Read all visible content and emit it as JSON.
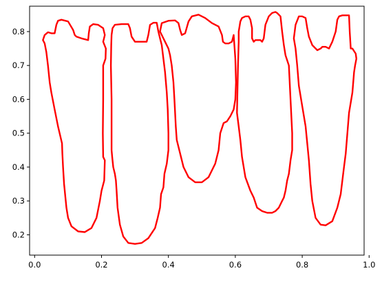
{
  "chart_data": {
    "type": "line",
    "title": "",
    "xlabel": "",
    "ylabel": "",
    "xlim": [
      -0.015,
      0.985
    ],
    "ylim": [
      0.14,
      0.875
    ],
    "grid": false,
    "legend": "none",
    "x_ticks": [
      0.0,
      0.2,
      0.4,
      0.6,
      0.8,
      1.0
    ],
    "x_tick_labels": [
      "0.0",
      "0.2",
      "0.4",
      "0.6",
      "0.8",
      "1.0"
    ],
    "y_ticks": [
      0.2,
      0.3,
      0.4,
      0.5,
      0.6,
      0.7,
      0.8
    ],
    "y_tick_labels": [
      "0.2",
      "0.3",
      "0.4",
      "0.5",
      "0.6",
      "0.7",
      "0.8"
    ],
    "series": [
      {
        "color": "#ff0000",
        "x": [
          0.025,
          0.03,
          0.04,
          0.05,
          0.06,
          0.065,
          0.07,
          0.08,
          0.1,
          0.115,
          0.12,
          0.125,
          0.14,
          0.16,
          0.162,
          0.165,
          0.175,
          0.19,
          0.205,
          0.21,
          0.205,
          0.213,
          0.212,
          0.205,
          0.205,
          0.204,
          0.205,
          0.21,
          0.208,
          0.2,
          0.195,
          0.185,
          0.17,
          0.15,
          0.13,
          0.11,
          0.1,
          0.095,
          0.088,
          0.085,
          0.083,
          0.082,
          0.07,
          0.06,
          0.05,
          0.045,
          0.04,
          0.035,
          0.03,
          0.025
        ],
        "y": [
          0.775,
          0.79,
          0.798,
          0.795,
          0.795,
          0.82,
          0.832,
          0.835,
          0.83,
          0.805,
          0.79,
          0.785,
          0.78,
          0.775,
          0.795,
          0.815,
          0.822,
          0.82,
          0.81,
          0.79,
          0.77,
          0.75,
          0.72,
          0.7,
          0.6,
          0.5,
          0.43,
          0.42,
          0.36,
          0.33,
          0.3,
          0.25,
          0.22,
          0.208,
          0.21,
          0.225,
          0.25,
          0.28,
          0.35,
          0.4,
          0.44,
          0.47,
          0.52,
          0.57,
          0.62,
          0.65,
          0.7,
          0.74,
          0.765,
          0.775
        ]
      },
      {
        "color": "#ff0000",
        "x": [
          0.23,
          0.233,
          0.24,
          0.26,
          0.28,
          0.285,
          0.29,
          0.3,
          0.32,
          0.335,
          0.34,
          0.345,
          0.355,
          0.365,
          0.37,
          0.375,
          0.38,
          0.385,
          0.39,
          0.395,
          0.398,
          0.4,
          0.4,
          0.395,
          0.388,
          0.385,
          0.378,
          0.375,
          0.368,
          0.36,
          0.34,
          0.32,
          0.3,
          0.28,
          0.265,
          0.255,
          0.248,
          0.245,
          0.243,
          0.24,
          0.235,
          0.232,
          0.23,
          0.23,
          0.228,
          0.229,
          0.23
        ],
        "y": [
          0.79,
          0.81,
          0.82,
          0.822,
          0.822,
          0.81,
          0.785,
          0.77,
          0.77,
          0.77,
          0.79,
          0.82,
          0.826,
          0.826,
          0.8,
          0.78,
          0.76,
          0.72,
          0.68,
          0.62,
          0.57,
          0.5,
          0.45,
          0.41,
          0.38,
          0.34,
          0.32,
          0.28,
          0.25,
          0.22,
          0.19,
          0.176,
          0.173,
          0.176,
          0.195,
          0.23,
          0.28,
          0.33,
          0.36,
          0.38,
          0.4,
          0.43,
          0.45,
          0.6,
          0.7,
          0.76,
          0.79
        ]
      },
      {
        "color": "#ff0000",
        "x": [
          0.375,
          0.38,
          0.4,
          0.42,
          0.43,
          0.435,
          0.44,
          0.45,
          0.46,
          0.47,
          0.49,
          0.51,
          0.53,
          0.55,
          0.56,
          0.563,
          0.57,
          0.58,
          0.59,
          0.595,
          0.6,
          0.602,
          0.6,
          0.595,
          0.585,
          0.575,
          0.565,
          0.555,
          0.55,
          0.54,
          0.52,
          0.5,
          0.48,
          0.46,
          0.445,
          0.435,
          0.425,
          0.422,
          0.42,
          0.418,
          0.415,
          0.41,
          0.405,
          0.4,
          0.39,
          0.38,
          0.375
        ],
        "y": [
          0.8,
          0.825,
          0.832,
          0.833,
          0.825,
          0.805,
          0.79,
          0.795,
          0.83,
          0.845,
          0.85,
          0.84,
          0.825,
          0.815,
          0.79,
          0.77,
          0.765,
          0.765,
          0.77,
          0.79,
          0.72,
          0.65,
          0.6,
          0.57,
          0.55,
          0.535,
          0.53,
          0.5,
          0.45,
          0.41,
          0.37,
          0.355,
          0.355,
          0.37,
          0.4,
          0.44,
          0.48,
          0.52,
          0.56,
          0.6,
          0.65,
          0.7,
          0.73,
          0.75,
          0.77,
          0.79,
          0.8
        ]
      },
      {
        "color": "#ff0000",
        "x": [
          0.61,
          0.61,
          0.615,
          0.62,
          0.63,
          0.64,
          0.645,
          0.65,
          0.65,
          0.655,
          0.66,
          0.675,
          0.68,
          0.685,
          0.69,
          0.7,
          0.71,
          0.72,
          0.725,
          0.735,
          0.74,
          0.745,
          0.75,
          0.76,
          0.765,
          0.77,
          0.77,
          0.765,
          0.76,
          0.755,
          0.75,
          0.745,
          0.74,
          0.73,
          0.72,
          0.71,
          0.695,
          0.68,
          0.665,
          0.655,
          0.645,
          0.63,
          0.62,
          0.615,
          0.61,
          0.605,
          0.608,
          0.61
        ],
        "y": [
          0.77,
          0.8,
          0.83,
          0.84,
          0.845,
          0.845,
          0.835,
          0.81,
          0.78,
          0.77,
          0.775,
          0.775,
          0.77,
          0.78,
          0.82,
          0.845,
          0.855,
          0.858,
          0.855,
          0.845,
          0.8,
          0.76,
          0.73,
          0.7,
          0.6,
          0.5,
          0.45,
          0.42,
          0.38,
          0.36,
          0.33,
          0.31,
          0.3,
          0.28,
          0.27,
          0.265,
          0.265,
          0.27,
          0.28,
          0.31,
          0.33,
          0.37,
          0.43,
          0.48,
          0.52,
          0.56,
          0.7,
          0.77
        ]
      },
      {
        "color": "#ff0000",
        "x": [
          0.775,
          0.78,
          0.79,
          0.8,
          0.81,
          0.815,
          0.82,
          0.83,
          0.845,
          0.855,
          0.86,
          0.87,
          0.88,
          0.89,
          0.9,
          0.905,
          0.91,
          0.92,
          0.94,
          0.942,
          0.945,
          0.95,
          0.96,
          0.962,
          0.958,
          0.955,
          0.95,
          0.94,
          0.935,
          0.93,
          0.925,
          0.92,
          0.915,
          0.905,
          0.89,
          0.87,
          0.855,
          0.84,
          0.83,
          0.825,
          0.82,
          0.815,
          0.81,
          0.8,
          0.79,
          0.785,
          0.78,
          0.775
        ],
        "y": [
          0.78,
          0.82,
          0.845,
          0.845,
          0.84,
          0.81,
          0.785,
          0.76,
          0.745,
          0.75,
          0.755,
          0.755,
          0.75,
          0.77,
          0.8,
          0.835,
          0.845,
          0.848,
          0.848,
          0.8,
          0.75,
          0.75,
          0.735,
          0.72,
          0.7,
          0.68,
          0.62,
          0.56,
          0.5,
          0.44,
          0.4,
          0.36,
          0.32,
          0.28,
          0.24,
          0.228,
          0.23,
          0.25,
          0.3,
          0.35,
          0.42,
          0.47,
          0.52,
          0.58,
          0.64,
          0.7,
          0.75,
          0.78
        ]
      }
    ]
  }
}
